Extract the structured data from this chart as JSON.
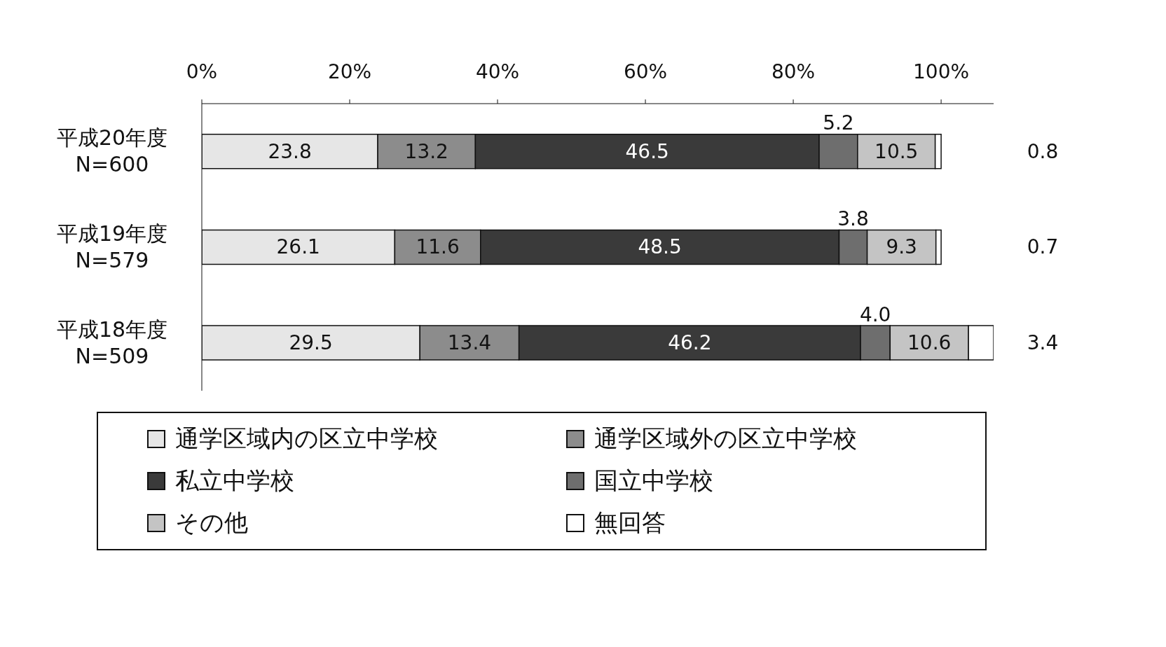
{
  "chart_data": {
    "type": "bar",
    "orientation": "horizontal",
    "stacked": true,
    "categories": [
      "平成20年度\nN=600",
      "平成19年度\nN=579",
      "平成18年度\nN=509"
    ],
    "series": [
      {
        "name": "通学区域内の区立中学校",
        "color": "#e6e6e6",
        "values": [
          23.8,
          26.1,
          29.5
        ]
      },
      {
        "name": "通学区域外の区立中学校",
        "color": "#8c8c8c",
        "values": [
          13.2,
          11.6,
          13.4
        ]
      },
      {
        "name": "私立中学校",
        "color": "#3a3a3a",
        "values": [
          46.5,
          48.5,
          46.2
        ]
      },
      {
        "name": "国立中学校",
        "color": "#6e6e6e",
        "values": [
          5.2,
          3.8,
          4.0
        ],
        "value_labels": [
          "5.2",
          "3.8",
          "4.0"
        ]
      },
      {
        "name": "その他",
        "color": "#c4c4c4",
        "values": [
          10.5,
          9.3,
          10.6
        ]
      },
      {
        "name": "無回答",
        "color": "#ffffff",
        "values": [
          0.8,
          0.7,
          3.4
        ]
      }
    ],
    "xlim": [
      0,
      107.1
    ],
    "xticks": [
      {
        "value": 0,
        "label": "0%"
      },
      {
        "value": 20,
        "label": "20%"
      },
      {
        "value": 40,
        "label": "40%"
      },
      {
        "value": 60,
        "label": "60%"
      },
      {
        "value": 80,
        "label": "80%"
      },
      {
        "value": 100,
        "label": "100%"
      }
    ],
    "grid": false,
    "data_labels": true,
    "legend": "bottom"
  }
}
